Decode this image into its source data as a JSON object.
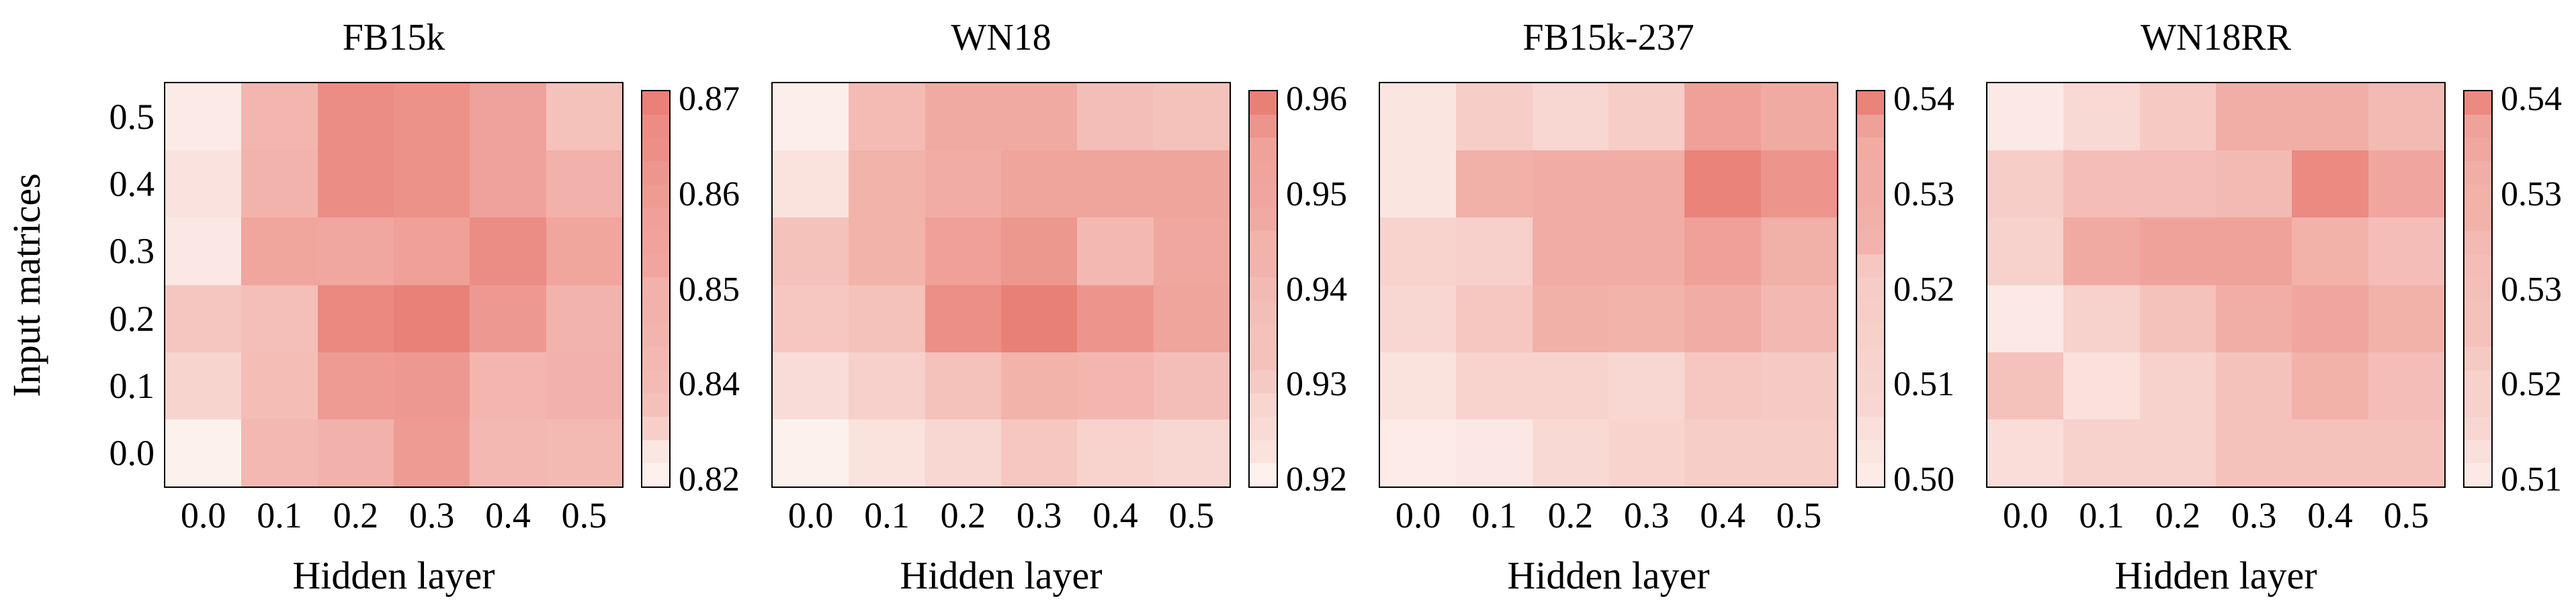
{
  "chart_data": {
    "type": "heatmap",
    "description": "Four 6x6 dropout-rate sensitivity heatmaps sharing axes: hidden-layer dropout (x) vs input-matrices dropout (y). Cell values estimated from color intensity against each panel's colorbar scale.",
    "axes": {
      "x_label": "Hidden layer",
      "y_label": "Input matrices",
      "x_ticks": [
        "0.0",
        "0.1",
        "0.2",
        "0.3",
        "0.4",
        "0.5"
      ],
      "y_ticks_top_to_bottom": [
        "0.5",
        "0.4",
        "0.3",
        "0.2",
        "0.1",
        "0.0"
      ],
      "grid": false,
      "tick_marks": false
    },
    "colormap": {
      "min_color": "#fdf1ed",
      "max_color": "#e87a70",
      "style": "light-red sequential, discrete quantile banding on colorbar"
    },
    "legend_position": "right colorbar per panel",
    "panels": [
      {
        "title": "FB15k",
        "vmin": 0.82,
        "vmax": 0.87,
        "colorbar_ticks_top_to_bottom": [
          "0.87",
          "0.86",
          "0.85",
          "0.84",
          "0.82"
        ],
        "rows_top_to_bottom": [
          [
            0.823,
            0.845,
            0.862,
            0.86,
            0.853,
            0.84
          ],
          [
            0.826,
            0.846,
            0.862,
            0.86,
            0.853,
            0.847
          ],
          [
            0.824,
            0.852,
            0.851,
            0.854,
            0.862,
            0.852
          ],
          [
            0.838,
            0.841,
            0.864,
            0.867,
            0.857,
            0.846
          ],
          [
            0.832,
            0.842,
            0.856,
            0.857,
            0.845,
            0.847
          ],
          [
            0.82,
            0.844,
            0.847,
            0.856,
            0.844,
            0.843
          ]
        ]
      },
      {
        "title": "WN18",
        "vmin": 0.92,
        "vmax": 0.96,
        "colorbar_ticks_top_to_bottom": [
          "0.96",
          "0.95",
          "0.94",
          "0.93",
          "0.92"
        ],
        "rows_top_to_bottom": [
          [
            0.921,
            0.938,
            0.944,
            0.944,
            0.937,
            0.936
          ],
          [
            0.925,
            0.941,
            0.943,
            0.946,
            0.946,
            0.946
          ],
          [
            0.936,
            0.941,
            0.947,
            0.95,
            0.939,
            0.945
          ],
          [
            0.934,
            0.936,
            0.953,
            0.958,
            0.951,
            0.946
          ],
          [
            0.927,
            0.931,
            0.936,
            0.941,
            0.94,
            0.937
          ],
          [
            0.92,
            0.925,
            0.929,
            0.934,
            0.93,
            0.929
          ]
        ]
      },
      {
        "title": "FB15k-237",
        "vmin": 0.5,
        "vmax": 0.54,
        "colorbar_ticks_top_to_bottom": [
          "0.54",
          "0.53",
          "0.52",
          "0.51",
          "0.50"
        ],
        "rows_top_to_bottom": [
          [
            0.504,
            0.512,
            0.509,
            0.512,
            0.527,
            0.524
          ],
          [
            0.504,
            0.522,
            0.523,
            0.523,
            0.537,
            0.531
          ],
          [
            0.51,
            0.511,
            0.523,
            0.523,
            0.527,
            0.522
          ],
          [
            0.509,
            0.514,
            0.522,
            0.521,
            0.523,
            0.519
          ],
          [
            0.505,
            0.51,
            0.51,
            0.509,
            0.514,
            0.513
          ],
          [
            0.502,
            0.503,
            0.508,
            0.51,
            0.512,
            0.512
          ]
        ]
      },
      {
        "title": "WN18RR",
        "vmin": 0.51,
        "vmax": 0.54,
        "colorbar_ticks_top_to_bottom": [
          "0.54",
          "0.53",
          "0.53",
          "0.52",
          "0.51"
        ],
        "rows_top_to_bottom": [
          [
            0.512,
            0.516,
            0.52,
            0.527,
            0.527,
            0.524
          ],
          [
            0.519,
            0.523,
            0.523,
            0.524,
            0.536,
            0.529
          ],
          [
            0.518,
            0.528,
            0.53,
            0.53,
            0.526,
            0.523
          ],
          [
            0.512,
            0.518,
            0.522,
            0.527,
            0.529,
            0.526
          ],
          [
            0.522,
            0.514,
            0.518,
            0.522,
            0.526,
            0.523
          ],
          [
            0.515,
            0.518,
            0.518,
            0.522,
            0.522,
            0.522
          ]
        ]
      }
    ]
  }
}
